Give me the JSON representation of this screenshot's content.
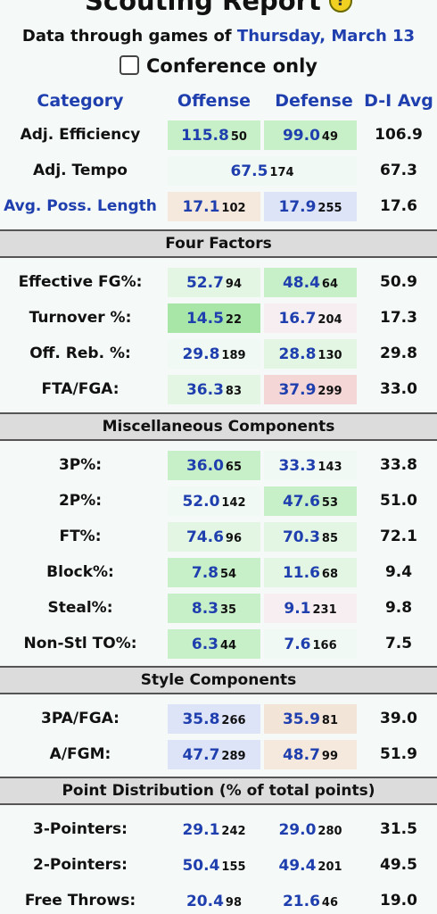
{
  "header": {
    "title": "Scouting Report",
    "help_icon": "?",
    "subtitle_prefix": "Data through games of ",
    "subtitle_date": "Thursday, March 13",
    "conference_only_label": "Conference only"
  },
  "columns": {
    "category": "Category",
    "offense": "Offense",
    "defense": "Defense",
    "avg": "D-I Avg"
  },
  "top_rows": [
    {
      "label": "Adj. Efficiency",
      "off_val": "115.8",
      "off_rank": "50",
      "def_val": "99.0",
      "def_rank": "49",
      "avg": "106.9"
    },
    {
      "label": "Adj. Tempo",
      "val": "67.5",
      "rank": "174",
      "avg": "67.3"
    },
    {
      "label": "Avg. Poss. Length",
      "off_val": "17.1",
      "off_rank": "102",
      "def_val": "17.9",
      "def_rank": "255",
      "avg": "17.6"
    }
  ],
  "sections": [
    {
      "title": "Four Factors",
      "rows": [
        {
          "label": "Effective FG%:",
          "off_val": "52.7",
          "off_rank": "94",
          "def_val": "48.4",
          "def_rank": "64",
          "avg": "50.9"
        },
        {
          "label": "Turnover %:",
          "off_val": "14.5",
          "off_rank": "22",
          "def_val": "16.7",
          "def_rank": "204",
          "avg": "17.3"
        },
        {
          "label": "Off. Reb. %:",
          "off_val": "29.8",
          "off_rank": "189",
          "def_val": "28.8",
          "def_rank": "130",
          "avg": "29.8"
        },
        {
          "label": "FTA/FGA:",
          "off_val": "36.3",
          "off_rank": "83",
          "def_val": "37.9",
          "def_rank": "299",
          "avg": "33.0"
        }
      ]
    },
    {
      "title": "Miscellaneous Components",
      "rows": [
        {
          "label": "3P%:",
          "off_val": "36.0",
          "off_rank": "65",
          "def_val": "33.3",
          "def_rank": "143",
          "avg": "33.8"
        },
        {
          "label": "2P%:",
          "off_val": "52.0",
          "off_rank": "142",
          "def_val": "47.6",
          "def_rank": "53",
          "avg": "51.0"
        },
        {
          "label": "FT%:",
          "off_val": "74.6",
          "off_rank": "96",
          "def_val": "70.3",
          "def_rank": "85",
          "avg": "72.1"
        },
        {
          "label": "Block%:",
          "off_val": "7.8",
          "off_rank": "54",
          "def_val": "11.6",
          "def_rank": "68",
          "avg": "9.4"
        },
        {
          "label": "Steal%:",
          "off_val": "8.3",
          "off_rank": "35",
          "def_val": "9.1",
          "def_rank": "231",
          "avg": "9.8"
        },
        {
          "label": "Non-Stl TO%:",
          "off_val": "6.3",
          "off_rank": "44",
          "def_val": "7.6",
          "def_rank": "166",
          "avg": "7.5"
        }
      ]
    },
    {
      "title": "Style Components",
      "rows": [
        {
          "label": "3PA/FGA:",
          "off_val": "35.8",
          "off_rank": "266",
          "def_val": "35.9",
          "def_rank": "81",
          "avg": "39.0"
        },
        {
          "label": "A/FGM:",
          "off_val": "47.7",
          "off_rank": "289",
          "def_val": "48.7",
          "def_rank": "99",
          "avg": "51.9"
        }
      ]
    },
    {
      "title": "Point Distribution (% of total points)",
      "rows": [
        {
          "label": "3-Pointers:",
          "off_val": "29.1",
          "off_rank": "242",
          "def_val": "29.0",
          "def_rank": "280",
          "avg": "31.5"
        },
        {
          "label": "2-Pointers:",
          "off_val": "50.4",
          "off_rank": "155",
          "def_val": "49.4",
          "def_rank": "201",
          "avg": "49.5"
        },
        {
          "label": "Free Throws:",
          "off_val": "20.4",
          "off_rank": "98",
          "def_val": "21.6",
          "def_rank": "46",
          "avg": "19.0"
        }
      ]
    }
  ],
  "colors": {
    "link_blue": "#1f3fae",
    "good_strong": "#a8e6a8",
    "good": "#c8f0c8",
    "good_light": "#e3f6e3",
    "bad": "#f5d6d6",
    "style_blue": "#dde4f8",
    "style_orange": "#f3e4d8"
  }
}
